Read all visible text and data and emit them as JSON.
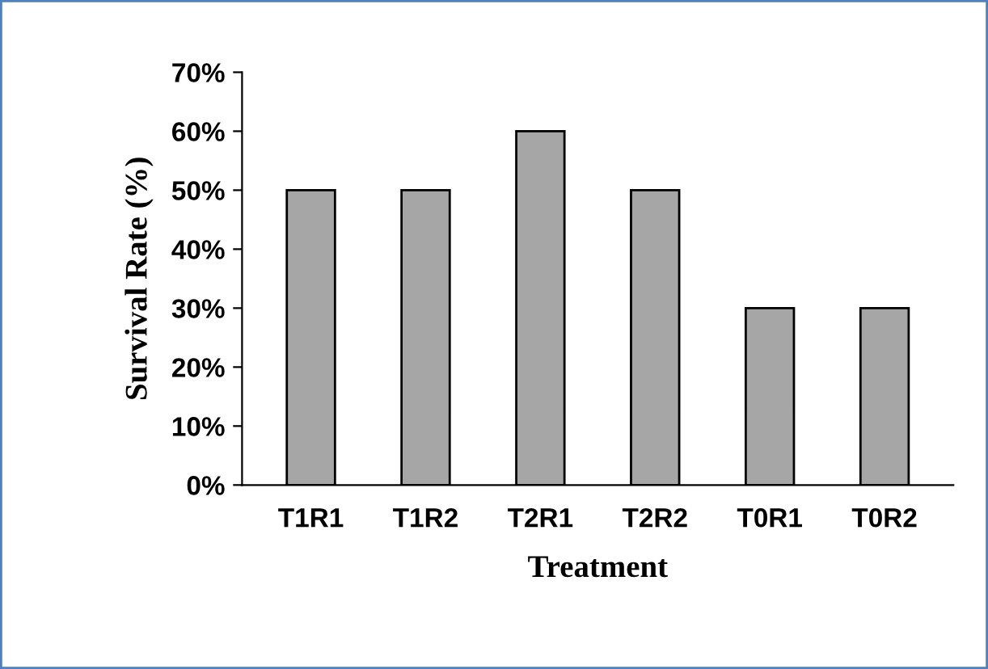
{
  "chart_data": {
    "type": "bar",
    "xlabel": "Treatment",
    "ylabel": "Survival Rate (%)",
    "categories": [
      "T1R1",
      "T1R2",
      "T2R1",
      "T2R2",
      "T0R1",
      "T0R2"
    ],
    "values": [
      50,
      50,
      60,
      50,
      30,
      30
    ],
    "color": "#a6a6a6",
    "ylim": [
      0,
      70
    ],
    "yticks": [
      {
        "value": 0,
        "label": "0%"
      },
      {
        "value": 10,
        "label": "10%"
      },
      {
        "value": 20,
        "label": "20%"
      },
      {
        "value": 30,
        "label": "30%"
      },
      {
        "value": 40,
        "label": "40%"
      },
      {
        "value": 50,
        "label": "50%"
      },
      {
        "value": 60,
        "label": "60%"
      },
      {
        "value": 70,
        "label": "70%"
      }
    ],
    "grid": false,
    "legend": false
  }
}
